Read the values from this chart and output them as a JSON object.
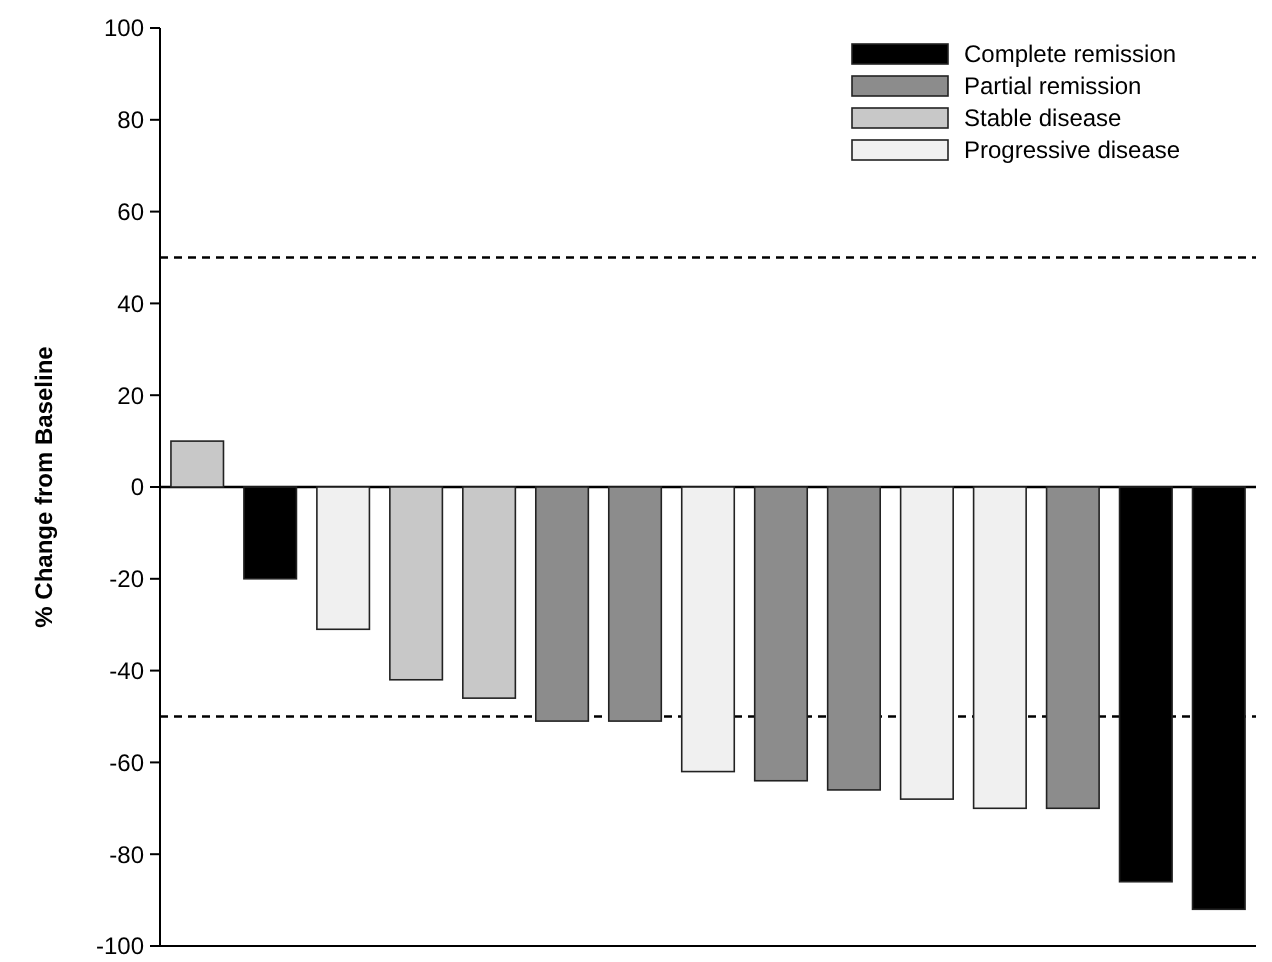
{
  "chart_data": {
    "type": "bar",
    "ylabel": "% Change from Baseline",
    "categories": [
      null,
      null,
      null,
      null,
      null,
      null,
      null,
      null,
      null,
      null,
      null,
      null,
      null,
      null,
      null
    ],
    "series": [
      {
        "name": "Complete remission",
        "color": "#000000",
        "values": [
          null,
          -20,
          null,
          null,
          null,
          null,
          null,
          null,
          null,
          null,
          null,
          null,
          null,
          -86,
          -92
        ]
      },
      {
        "name": "Partial remission",
        "color": "#8c8c8c",
        "values": [
          null,
          null,
          null,
          null,
          null,
          -51,
          -51,
          null,
          -64,
          -66,
          null,
          null,
          -70,
          null,
          null
        ]
      },
      {
        "name": "Stable disease",
        "color": "#c8c8c8",
        "values": [
          10,
          null,
          null,
          -42,
          -46,
          null,
          null,
          null,
          null,
          null,
          null,
          null,
          null,
          null,
          null
        ]
      },
      {
        "name": "Progressive disease",
        "color": "#f0f0f0",
        "values": [
          null,
          null,
          -31,
          null,
          null,
          null,
          null,
          -62,
          null,
          null,
          -68,
          -70,
          null,
          null,
          null
        ]
      }
    ],
    "ylim": [
      -100,
      100
    ],
    "yticks": [
      -100,
      -80,
      -60,
      -40,
      -20,
      0,
      20,
      40,
      60,
      80,
      100
    ],
    "ref_lines": [
      {
        "axis": "y",
        "value": 50,
        "line_style": "dashed"
      },
      {
        "axis": "y",
        "value": -50,
        "line_style": "dashed"
      },
      {
        "axis": "y",
        "value": 0,
        "line_style": "solid"
      }
    ],
    "legend": "top right",
    "tick_labels": "y"
  }
}
